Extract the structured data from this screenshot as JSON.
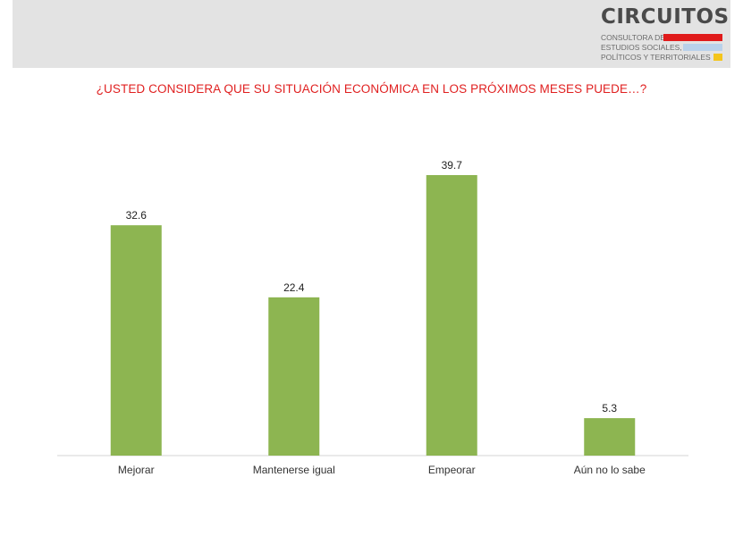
{
  "logo": {
    "title": "CIRCUITOS",
    "line1": "CONSULTORA DE",
    "line2": "ESTUDIOS SOCIALES,",
    "line3": "POLÍTICOS Y TERRITORIALES",
    "colors": {
      "red": "#e01b1b",
      "blue": "#b9d1ea",
      "yellow": "#f4c51c"
    }
  },
  "question": "¿USTED CONSIDERA QUE SU SITUACIÓN ECONÓMICA EN LOS PRÓXIMOS MESES PUEDE…?",
  "chart_data": {
    "type": "bar",
    "title": "¿USTED CONSIDERA QUE SU SITUACIÓN ECONÓMICA EN LOS PRÓXIMOS MESES PUEDE…?",
    "categories": [
      "Mejorar",
      "Mantenerse igual",
      "Empeorar",
      "Aún no lo sabe"
    ],
    "values": [
      32.6,
      22.4,
      39.7,
      5.3
    ],
    "value_labels": [
      "32.6",
      "22.4",
      "39.7",
      "5.3"
    ],
    "ylim": [
      0,
      40
    ],
    "grid": false,
    "bar_color": "#8db551"
  }
}
